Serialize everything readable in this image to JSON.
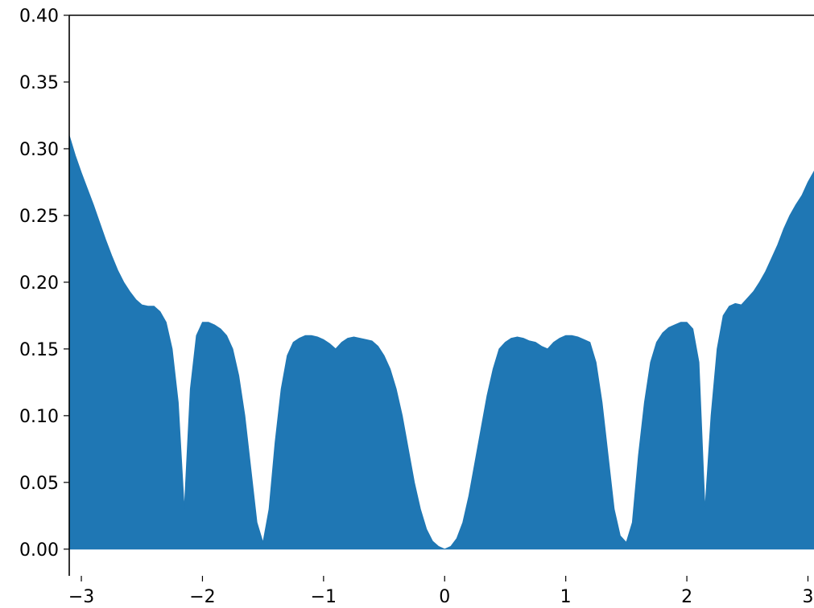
{
  "chart_data": {
    "type": "area",
    "title": "",
    "xlabel": "",
    "ylabel": "",
    "xlim": [
      -3.1,
      3.05
    ],
    "ylim": [
      -0.02,
      0.4
    ],
    "x_ticks": [
      -3,
      -2,
      -1,
      0,
      1,
      2,
      3
    ],
    "x_tick_labels": [
      "−3",
      "−2",
      "−1",
      "0",
      "1",
      "2",
      "3"
    ],
    "y_ticks": [
      0.0,
      0.05,
      0.1,
      0.15,
      0.2,
      0.25,
      0.3,
      0.35,
      0.4
    ],
    "y_tick_labels": [
      "0.00",
      "0.05",
      "0.10",
      "0.15",
      "0.20",
      "0.25",
      "0.30",
      "0.35",
      "0.40"
    ],
    "grid": false,
    "legend": "none",
    "series": [
      {
        "color": "#1f77b4",
        "x": [
          -3.1,
          -3.05,
          -3.0,
          -2.95,
          -2.9,
          -2.85,
          -2.8,
          -2.75,
          -2.7,
          -2.65,
          -2.6,
          -2.55,
          -2.5,
          -2.45,
          -2.4,
          -2.35,
          -2.3,
          -2.25,
          -2.2,
          -2.15,
          -2.1,
          -2.05,
          -2.0,
          -1.95,
          -1.9,
          -1.85,
          -1.8,
          -1.75,
          -1.7,
          -1.65,
          -1.6,
          -1.55,
          -1.5,
          -1.45,
          -1.4,
          -1.35,
          -1.3,
          -1.25,
          -1.2,
          -1.15,
          -1.1,
          -1.05,
          -1.0,
          -0.95,
          -0.9,
          -0.85,
          -0.8,
          -0.75,
          -0.7,
          -0.65,
          -0.6,
          -0.55,
          -0.5,
          -0.45,
          -0.4,
          -0.35,
          -0.3,
          -0.25,
          -0.2,
          -0.15,
          -0.1,
          -0.05,
          0.0,
          0.05,
          0.1,
          0.15,
          0.2,
          0.25,
          0.3,
          0.35,
          0.4,
          0.45,
          0.5,
          0.55,
          0.6,
          0.65,
          0.7,
          0.75,
          0.8,
          0.85,
          0.9,
          0.95,
          1.0,
          1.05,
          1.1,
          1.15,
          1.2,
          1.25,
          1.3,
          1.35,
          1.4,
          1.45,
          1.5,
          1.55,
          1.6,
          1.65,
          1.7,
          1.75,
          1.8,
          1.85,
          1.9,
          1.95,
          2.0,
          2.05,
          2.1,
          2.15,
          2.2,
          2.25,
          2.3,
          2.35,
          2.4,
          2.45,
          2.5,
          2.55,
          2.6,
          2.65,
          2.7,
          2.75,
          2.8,
          2.85,
          2.9,
          2.95,
          3.0,
          3.05
        ],
        "y": [
          0.31,
          0.295,
          0.282,
          0.27,
          0.258,
          0.245,
          0.232,
          0.22,
          0.209,
          0.2,
          0.193,
          0.187,
          0.183,
          0.182,
          0.182,
          0.178,
          0.17,
          0.15,
          0.11,
          0.03,
          0.12,
          0.16,
          0.17,
          0.17,
          0.168,
          0.165,
          0.16,
          0.15,
          0.13,
          0.1,
          0.06,
          0.02,
          0.005,
          0.03,
          0.08,
          0.12,
          0.145,
          0.155,
          0.158,
          0.16,
          0.16,
          0.159,
          0.157,
          0.154,
          0.15,
          0.155,
          0.158,
          0.159,
          0.158,
          0.157,
          0.156,
          0.152,
          0.145,
          0.135,
          0.12,
          0.1,
          0.075,
          0.05,
          0.03,
          0.015,
          0.006,
          0.002,
          0.0,
          0.002,
          0.008,
          0.02,
          0.04,
          0.065,
          0.09,
          0.115,
          0.135,
          0.15,
          0.155,
          0.158,
          0.159,
          0.158,
          0.156,
          0.155,
          0.152,
          0.15,
          0.155,
          0.158,
          0.16,
          0.16,
          0.159,
          0.157,
          0.155,
          0.14,
          0.11,
          0.07,
          0.03,
          0.01,
          0.005,
          0.02,
          0.07,
          0.11,
          0.14,
          0.155,
          0.162,
          0.166,
          0.168,
          0.17,
          0.17,
          0.165,
          0.14,
          0.03,
          0.1,
          0.15,
          0.175,
          0.182,
          0.184,
          0.183,
          0.188,
          0.193,
          0.2,
          0.208,
          0.218,
          0.228,
          0.24,
          0.25,
          0.258,
          0.265,
          0.275,
          0.283
        ]
      }
    ]
  }
}
